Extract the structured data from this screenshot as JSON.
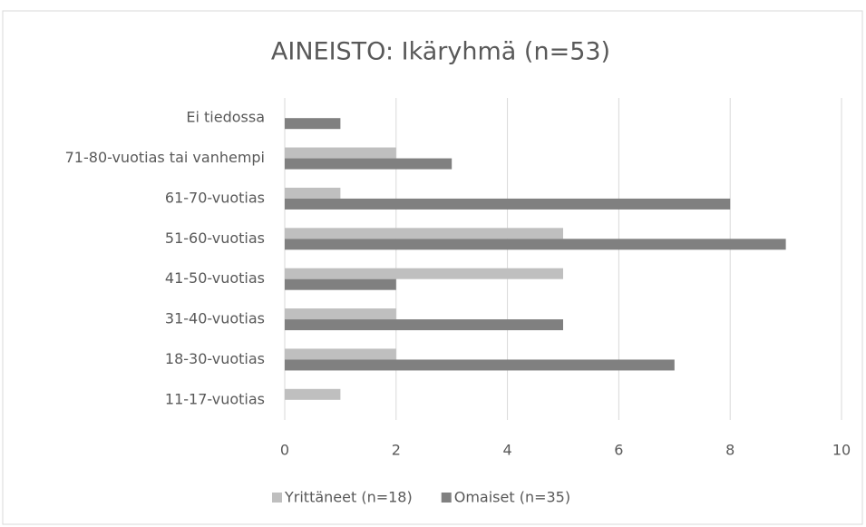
{
  "chart_data": {
    "type": "bar",
    "orientation": "horizontal",
    "title": "AINEISTO: Ikäryhmä (n=53)",
    "categories": [
      "Ei tiedossa",
      "71-80-vuotias tai vanhempi",
      "61-70-vuotias",
      "51-60-vuotias",
      "41-50-vuotias",
      "31-40-vuotias",
      "18-30-vuotias",
      "11-17-vuotias"
    ],
    "series": [
      {
        "name": "Yrittäneet (n=18)",
        "color": "#bfbfbf",
        "values": [
          0,
          2,
          1,
          5,
          5,
          2,
          2,
          1
        ]
      },
      {
        "name": "Omaiset (n=35)",
        "color": "#808080",
        "values": [
          1,
          3,
          8,
          9,
          2,
          5,
          7,
          0
        ]
      }
    ],
    "xlim": [
      0,
      10
    ],
    "xticks": [
      0,
      2,
      4,
      6,
      8,
      10
    ],
    "grid": true,
    "legend": "bottom"
  }
}
